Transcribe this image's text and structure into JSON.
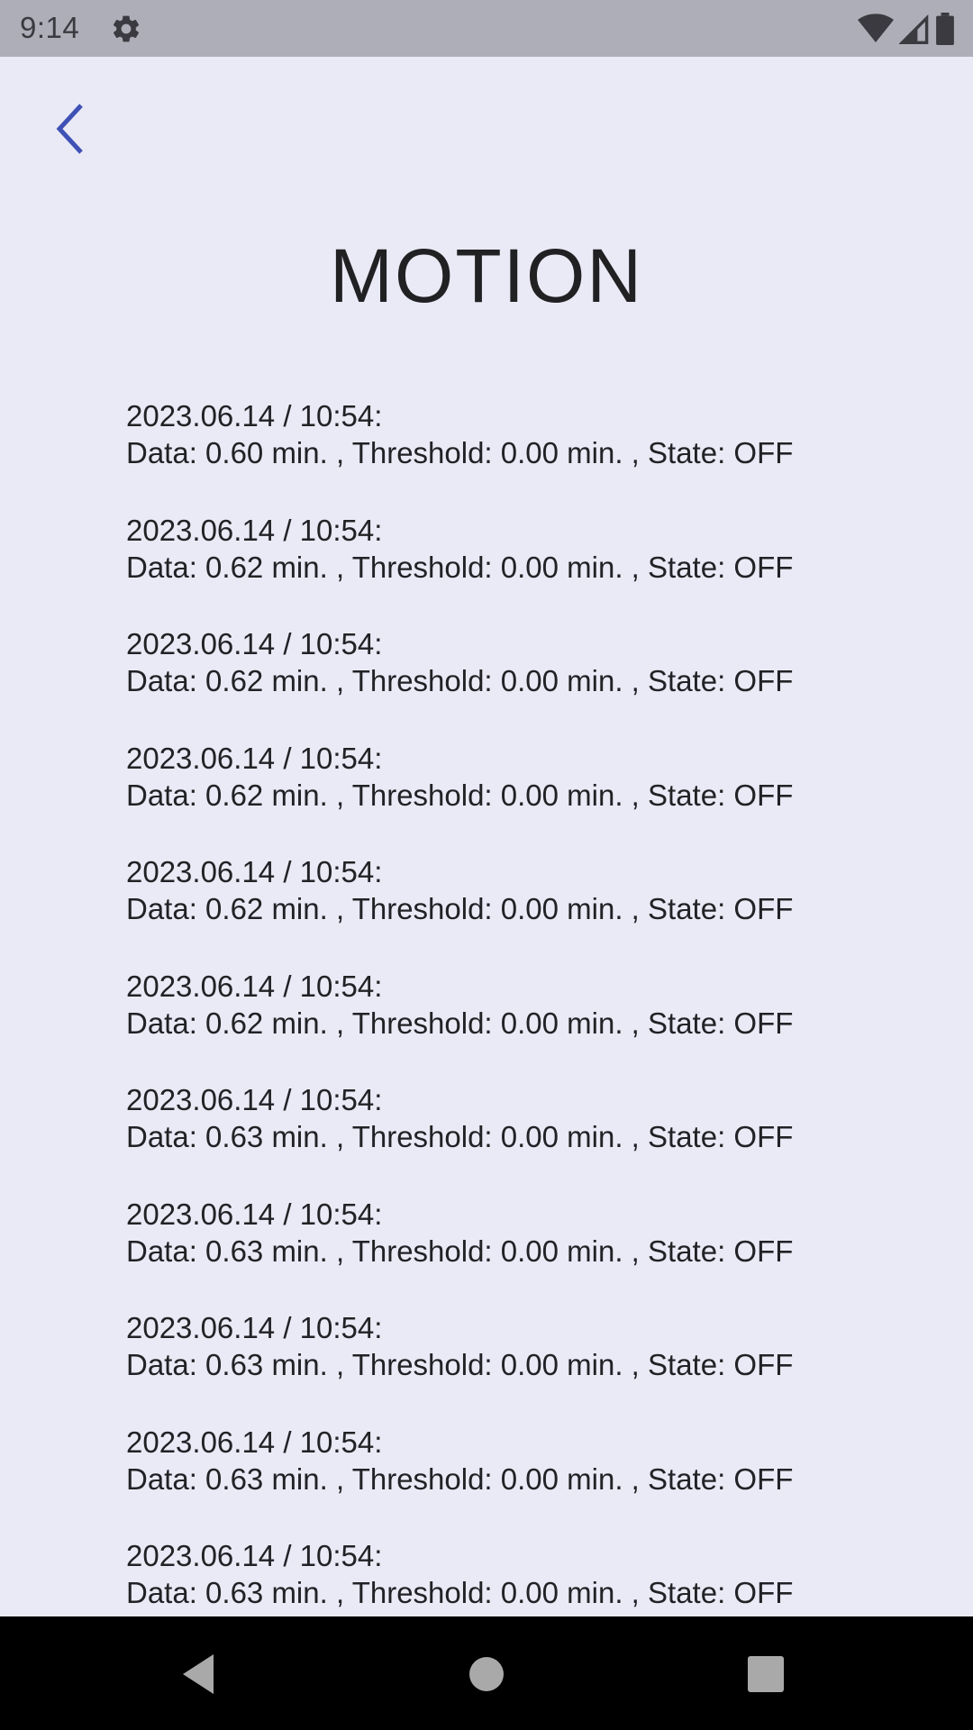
{
  "status_bar": {
    "time": "9:14",
    "left_icons": [
      "gear-icon"
    ],
    "right_icons": [
      "wifi-icon",
      "cell-signal-icon",
      "battery-icon"
    ]
  },
  "header": {
    "back_icon": "chevron-left-icon",
    "title": "MOTION"
  },
  "log": {
    "entries": [
      {
        "timestamp": "2023.06.14 / 10:54:",
        "details": "Data: 0.60 min. , Threshold: 0.00 min. , State: OFF"
      },
      {
        "timestamp": "2023.06.14 / 10:54:",
        "details": "Data: 0.62 min. , Threshold: 0.00 min. , State: OFF"
      },
      {
        "timestamp": "2023.06.14 / 10:54:",
        "details": "Data: 0.62 min. , Threshold: 0.00 min. , State: OFF"
      },
      {
        "timestamp": "2023.06.14 / 10:54:",
        "details": "Data: 0.62 min. , Threshold: 0.00 min. , State: OFF"
      },
      {
        "timestamp": "2023.06.14 / 10:54:",
        "details": "Data: 0.62 min. , Threshold: 0.00 min. , State: OFF"
      },
      {
        "timestamp": "2023.06.14 / 10:54:",
        "details": "Data: 0.62 min. , Threshold: 0.00 min. , State: OFF"
      },
      {
        "timestamp": "2023.06.14 / 10:54:",
        "details": "Data: 0.63 min. , Threshold: 0.00 min. , State: OFF"
      },
      {
        "timestamp": "2023.06.14 / 10:54:",
        "details": "Data: 0.63 min. , Threshold: 0.00 min. , State: OFF"
      },
      {
        "timestamp": "2023.06.14 / 10:54:",
        "details": "Data: 0.63 min. , Threshold: 0.00 min. , State: OFF"
      },
      {
        "timestamp": "2023.06.14 / 10:54:",
        "details": "Data: 0.63 min. , Threshold: 0.00 min. , State: OFF"
      },
      {
        "timestamp": "2023.06.14 / 10:54:",
        "details": "Data: 0.63 min. , Threshold: 0.00 min. , State: OFF"
      }
    ]
  },
  "nav_bar": {
    "icons": [
      "nav-back-icon",
      "nav-home-icon",
      "nav-recents-icon"
    ]
  },
  "colors": {
    "accent": "#3f51b5",
    "background": "#e9eaf5",
    "status_bar": "#aeaeb8",
    "text": "#222226",
    "nav_bar": "#000000"
  }
}
